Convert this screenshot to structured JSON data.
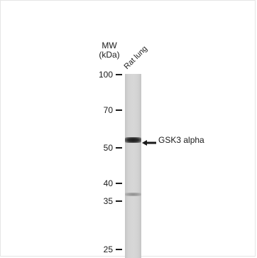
{
  "blot": {
    "mw_title_line1": "MW",
    "mw_title_line2": "(kDa)",
    "lane_label": "Rat lung",
    "markers": [
      {
        "label": "100"
      },
      {
        "label": "70"
      },
      {
        "label": "50"
      },
      {
        "label": "40"
      },
      {
        "label": "35"
      },
      {
        "label": "25"
      }
    ],
    "annotation": "GSK3 alpha",
    "arrow_icon": "left-arrow-icon"
  }
}
